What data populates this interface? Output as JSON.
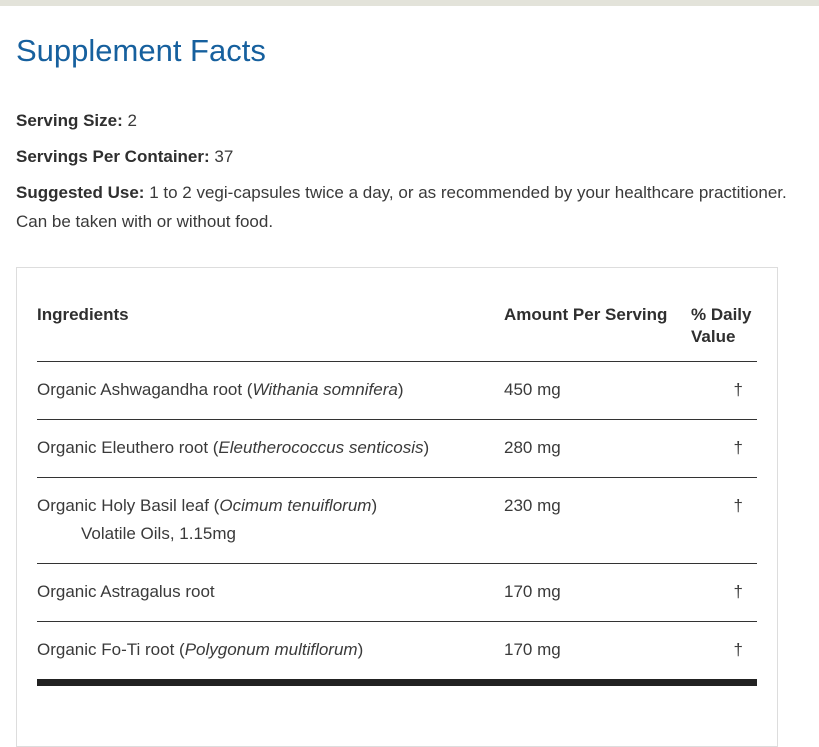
{
  "page": {
    "title": "Supplement Facts"
  },
  "theme": {
    "accent_color": "#16609e",
    "top_bar_color": "#e3e3da",
    "text_color": "#3a3a3a",
    "table_border_color": "#dddddd",
    "row_rule_color": "#333333",
    "thick_rule_color": "#222222"
  },
  "meta": {
    "serving_size": {
      "label": "Serving Size:",
      "value": "2"
    },
    "servings_per_container": {
      "label": "Servings Per Container:",
      "value": "37"
    },
    "suggested_use": {
      "label": "Suggested Use:",
      "value": "1 to 2 vegi-capsules twice a day, or as recommended by your healthcare practitioner. Can be taken with or without food."
    }
  },
  "table": {
    "headers": {
      "ingredients": "Ingredients",
      "amount": "Amount Per Serving",
      "daily_value": "% Daily Value"
    },
    "rows": [
      {
        "text_before": "Organic Ashwagandha root (",
        "species": "Withania somnifera",
        "text_after": ")",
        "subline": "",
        "amount": "450 mg",
        "daily_value": "†"
      },
      {
        "text_before": "Organic Eleuthero root (",
        "species": "Eleutherococcus senticosis",
        "text_after": ")",
        "subline": "",
        "amount": "280 mg",
        "daily_value": "†"
      },
      {
        "text_before": "Organic Holy Basil leaf (",
        "species": "Ocimum tenuiflorum",
        "text_after": ")",
        "subline": "Volatile Oils, 1.15mg",
        "amount": "230 mg",
        "daily_value": "†"
      },
      {
        "text_before": "Organic Astragalus root",
        "species": "",
        "text_after": "",
        "subline": "",
        "amount": "170 mg",
        "daily_value": "†"
      },
      {
        "text_before": "Organic Fo-Ti root (",
        "species": "Polygonum multiflorum",
        "text_after": ")",
        "subline": "",
        "amount": "170 mg",
        "daily_value": "†"
      }
    ]
  }
}
